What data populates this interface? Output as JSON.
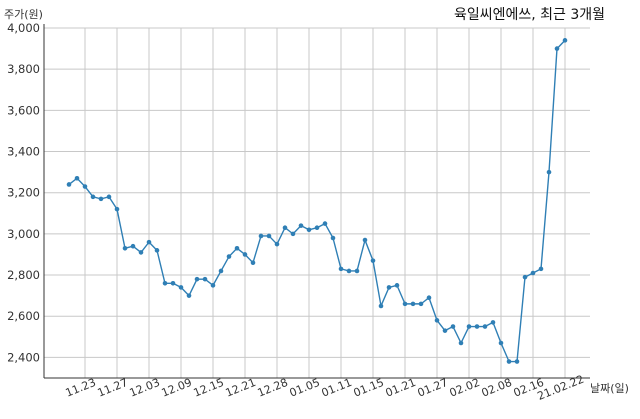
{
  "chart_data": {
    "type": "line",
    "title": "육일씨엔에쓰, 최근 3개월",
    "ylabel": "주가(원)",
    "xlabel": "날짜(일)",
    "ylim": [
      2300,
      4000
    ],
    "yticks": [
      2400,
      2600,
      2800,
      3000,
      3200,
      3400,
      3600,
      3800,
      4000
    ],
    "ytick_labels": [
      "2,400",
      "2,600",
      "2,800",
      "3,000",
      "3,200",
      "3,400",
      "3,600",
      "3,800",
      "4,000"
    ],
    "grid": true,
    "color": "#2f7fb5",
    "xtick_positions": [
      2,
      6,
      10,
      14,
      18,
      22,
      26,
      30,
      34,
      38,
      42,
      46,
      50,
      54,
      58,
      62
    ],
    "xtick_labels": [
      "11.23",
      "11.27",
      "12.03",
      "12.09",
      "12.15",
      "12.21",
      "12.28",
      "01.05",
      "01.11",
      "01.15",
      "01.21",
      "01.27",
      "02.02",
      "02.08",
      "02.16",
      "21.02.22"
    ],
    "series": [
      {
        "values": [
          3240,
          3270,
          3230,
          3180,
          3170,
          3180,
          3120,
          2930,
          2940,
          2910,
          2960,
          2920,
          2760,
          2760,
          2740,
          2700,
          2780,
          2780,
          2750,
          2820,
          2890,
          2930,
          2900,
          2860,
          2990,
          2990,
          2950,
          3030,
          3000,
          3040,
          3020,
          3030,
          3050,
          2980,
          2830,
          2820,
          2820,
          2970,
          2870,
          2650,
          2740,
          2750,
          2660,
          2660,
          2660,
          2690,
          2580,
          2530,
          2550,
          2470,
          2550,
          2550,
          2550,
          2570,
          2470,
          2380,
          2380,
          2790,
          2810,
          2830,
          3300,
          3900,
          3940
        ]
      }
    ]
  }
}
